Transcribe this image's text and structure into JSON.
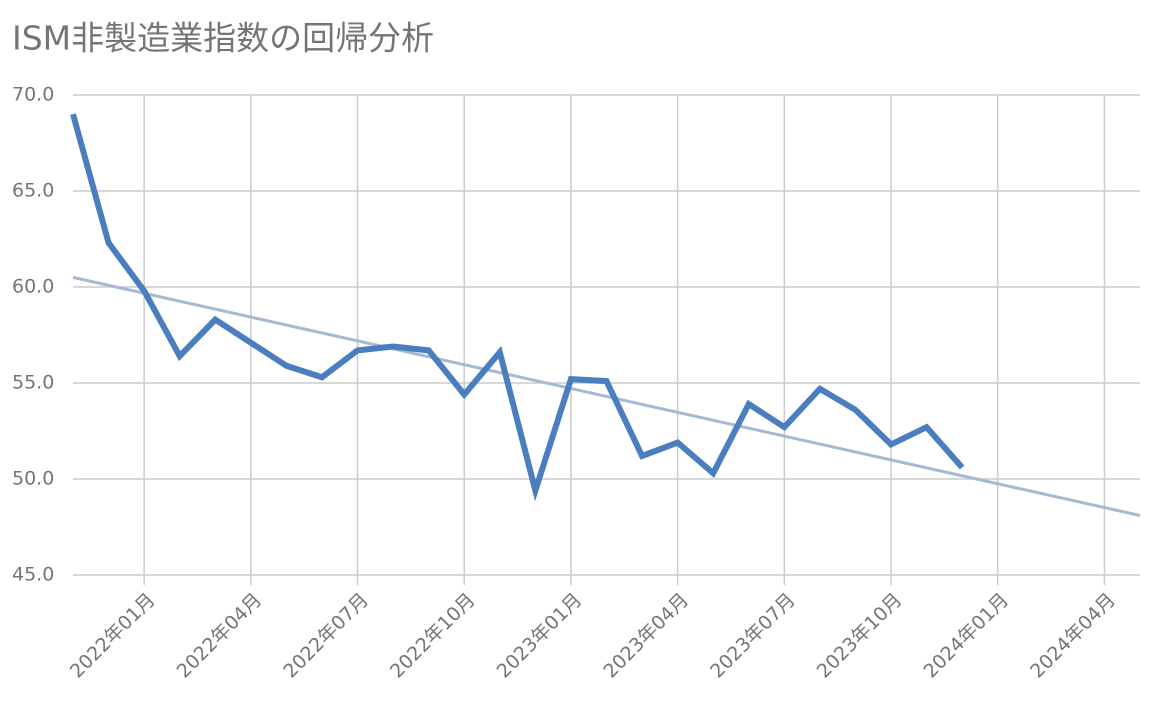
{
  "chart_data": {
    "type": "line",
    "title": "ISM非製造業指数の回帰分析",
    "x": [
      "2021-11",
      "2021-12",
      "2022-01",
      "2022-02",
      "2022-03",
      "2022-04",
      "2022-05",
      "2022-06",
      "2022-07",
      "2022-08",
      "2022-09",
      "2022-10",
      "2022-11",
      "2022-12",
      "2023-01",
      "2023-02",
      "2023-03",
      "2023-04",
      "2023-05",
      "2023-06",
      "2023-07",
      "2023-08",
      "2023-09",
      "2023-10",
      "2023-11",
      "2023-12"
    ],
    "series": [
      {
        "color": "#4a7ebf",
        "values": [
          69.0,
          62.3,
          59.8,
          56.4,
          58.3,
          57.1,
          55.9,
          55.3,
          56.7,
          56.9,
          56.7,
          54.4,
          56.6,
          49.4,
          55.2,
          55.1,
          51.2,
          51.9,
          50.3,
          53.9,
          52.7,
          54.7,
          53.6,
          51.8,
          52.7,
          50.6
        ]
      }
    ],
    "trendline": {
      "color": "#a5b9d4",
      "x": [
        "2021-11",
        "2024-05"
      ],
      "values": [
        60.5,
        48.1
      ]
    },
    "xlim": [
      "2021-11",
      "2024-05"
    ],
    "xticks": [
      {
        "value": "2022-01",
        "label": "2022年01月"
      },
      {
        "value": "2022-04",
        "label": "2022年04月"
      },
      {
        "value": "2022-07",
        "label": "2022年07月"
      },
      {
        "value": "2022-10",
        "label": "2022年10月"
      },
      {
        "value": "2023-01",
        "label": "2023年01月"
      },
      {
        "value": "2023-04",
        "label": "2023年04月"
      },
      {
        "value": "2023-07",
        "label": "2023年07月"
      },
      {
        "value": "2023-10",
        "label": "2023年10月"
      },
      {
        "value": "2024-01",
        "label": "2024年01月"
      },
      {
        "value": "2024-04",
        "label": "2024年04月"
      }
    ],
    "ylim": [
      45,
      70
    ],
    "yticks": [
      {
        "value": 45,
        "label": "45.0"
      },
      {
        "value": 50,
        "label": "50.0"
      },
      {
        "value": 55,
        "label": "55.0"
      },
      {
        "value": 60,
        "label": "60.0"
      },
      {
        "value": 65,
        "label": "65.0"
      },
      {
        "value": 70,
        "label": "70.0"
      }
    ],
    "grid": true
  }
}
